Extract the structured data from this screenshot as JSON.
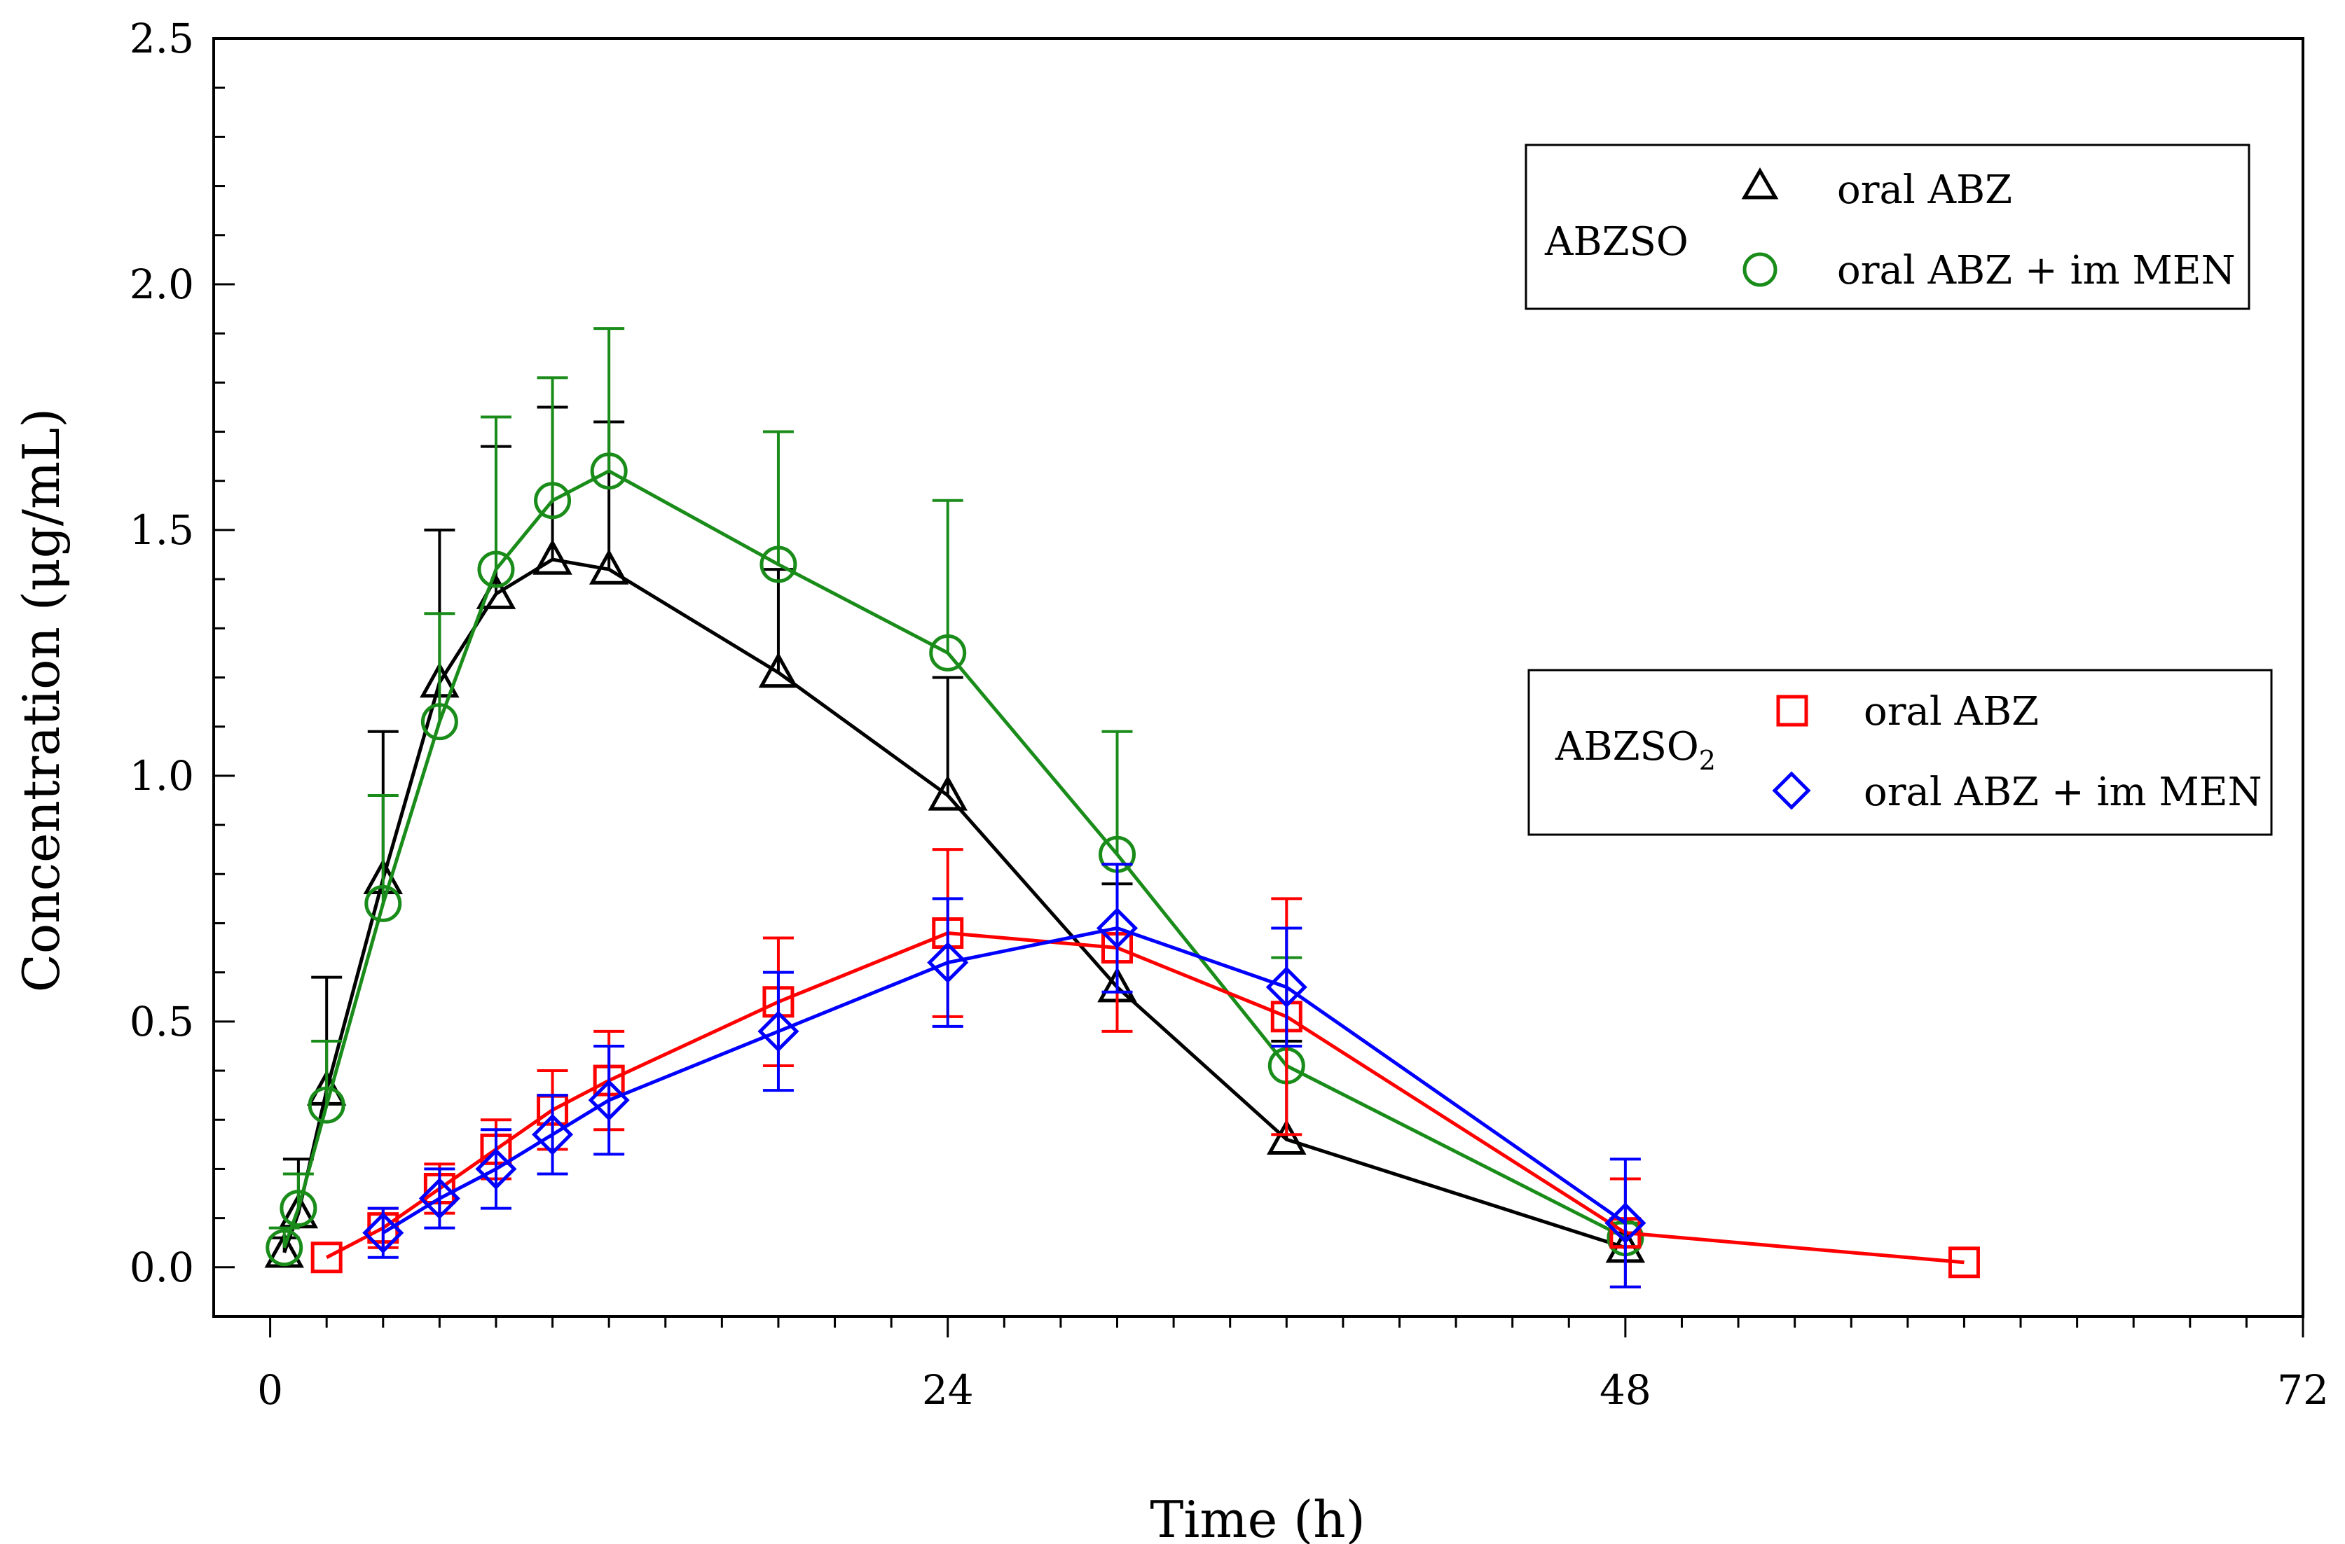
{
  "chart_data": {
    "type": "line",
    "xlabel": "Time (h)",
    "ylabel": "Concentration (μg/mL)",
    "xlim": [
      -2,
      72
    ],
    "ylim": [
      -0.1,
      2.5
    ],
    "xticks": [
      "0",
      "24",
      "48",
      "72"
    ],
    "yticks": [
      "0.0",
      "0.5",
      "1.0",
      "1.5",
      "2.0",
      "2.5"
    ],
    "grid": false,
    "legends": [
      {
        "group": "ABZSO",
        "group_sub": "",
        "placement": "top-right",
        "entries": [
          "oral ABZ",
          "oral ABZ + im MEN"
        ]
      },
      {
        "group": "ABZSO",
        "group_sub": "2",
        "placement": "middle-right",
        "entries": [
          "oral ABZ",
          "oral ABZ + im MEN"
        ]
      }
    ],
    "series": [
      {
        "name": "ABZSO oral ABZ",
        "marker": "triangle",
        "color": "#000000",
        "x": [
          0.5,
          1,
          2,
          4,
          6,
          8,
          10,
          12,
          18,
          24,
          30,
          36,
          48
        ],
        "y": [
          0.03,
          0.11,
          0.36,
          0.79,
          1.19,
          1.37,
          1.44,
          1.42,
          1.21,
          0.96,
          0.57,
          0.26,
          0.04
        ],
        "err": [
          0.03,
          0.11,
          0.23,
          0.3,
          0.31,
          0.3,
          0.31,
          0.3,
          0.21,
          0.24,
          0.21,
          0.2,
          0.03
        ]
      },
      {
        "name": "ABZSO oral ABZ + im MEN",
        "marker": "circle",
        "color": "#1a8c1a",
        "x": [
          0.5,
          1,
          2,
          4,
          6,
          8,
          10,
          12,
          18,
          24,
          30,
          36,
          48
        ],
        "y": [
          0.04,
          0.12,
          0.33,
          0.74,
          1.11,
          1.42,
          1.56,
          1.62,
          1.43,
          1.25,
          0.84,
          0.41,
          0.06
        ],
        "err": [
          0.04,
          0.07,
          0.13,
          0.22,
          0.22,
          0.31,
          0.25,
          0.29,
          0.27,
          0.31,
          0.25,
          0.22,
          0.03
        ]
      },
      {
        "name": "ABZSO2 oral ABZ",
        "marker": "square",
        "color": "#ff0000",
        "x": [
          2,
          4,
          6,
          8,
          10,
          12,
          18,
          24,
          30,
          36,
          48,
          60
        ],
        "y": [
          0.02,
          0.08,
          0.16,
          0.24,
          0.32,
          0.38,
          0.54,
          0.68,
          0.65,
          0.51,
          0.07,
          0.01
        ],
        "err": [
          0.0,
          0.04,
          0.05,
          0.06,
          0.08,
          0.1,
          0.13,
          0.17,
          0.17,
          0.24,
          0.11,
          0.0
        ]
      },
      {
        "name": "ABZSO2 oral ABZ + im MEN",
        "marker": "diamond",
        "color": "#0000ff",
        "x": [
          4,
          6,
          8,
          10,
          12,
          18,
          24,
          30,
          36,
          48
        ],
        "y": [
          0.07,
          0.14,
          0.2,
          0.27,
          0.34,
          0.48,
          0.62,
          0.69,
          0.57,
          0.09
        ],
        "err": [
          0.05,
          0.06,
          0.08,
          0.08,
          0.11,
          0.12,
          0.13,
          0.13,
          0.12,
          0.13
        ]
      }
    ]
  }
}
